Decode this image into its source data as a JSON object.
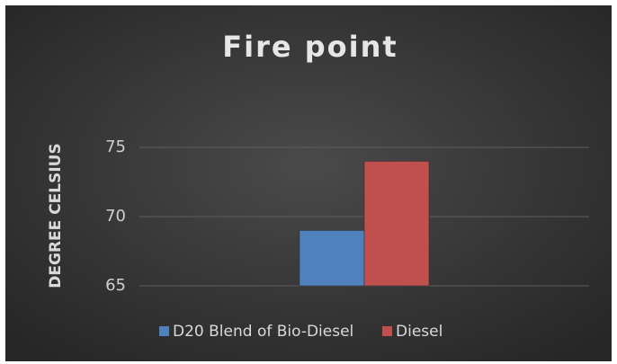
{
  "chart_data": {
    "type": "bar",
    "title": "Fire point",
    "y_label": "DEGREE CELSIUS",
    "categories": [
      null
    ],
    "series": [
      {
        "name": "D20 Blend of Bio-Diesel",
        "color": "#4f81bd",
        "values": [
          69
        ]
      },
      {
        "name": "Diesel",
        "color": "#c0504d",
        "values": [
          74
        ]
      }
    ],
    "ylim": [
      65,
      75
    ],
    "yticks": [
      65,
      70,
      75
    ],
    "grid": true,
    "legend": "bottom"
  }
}
